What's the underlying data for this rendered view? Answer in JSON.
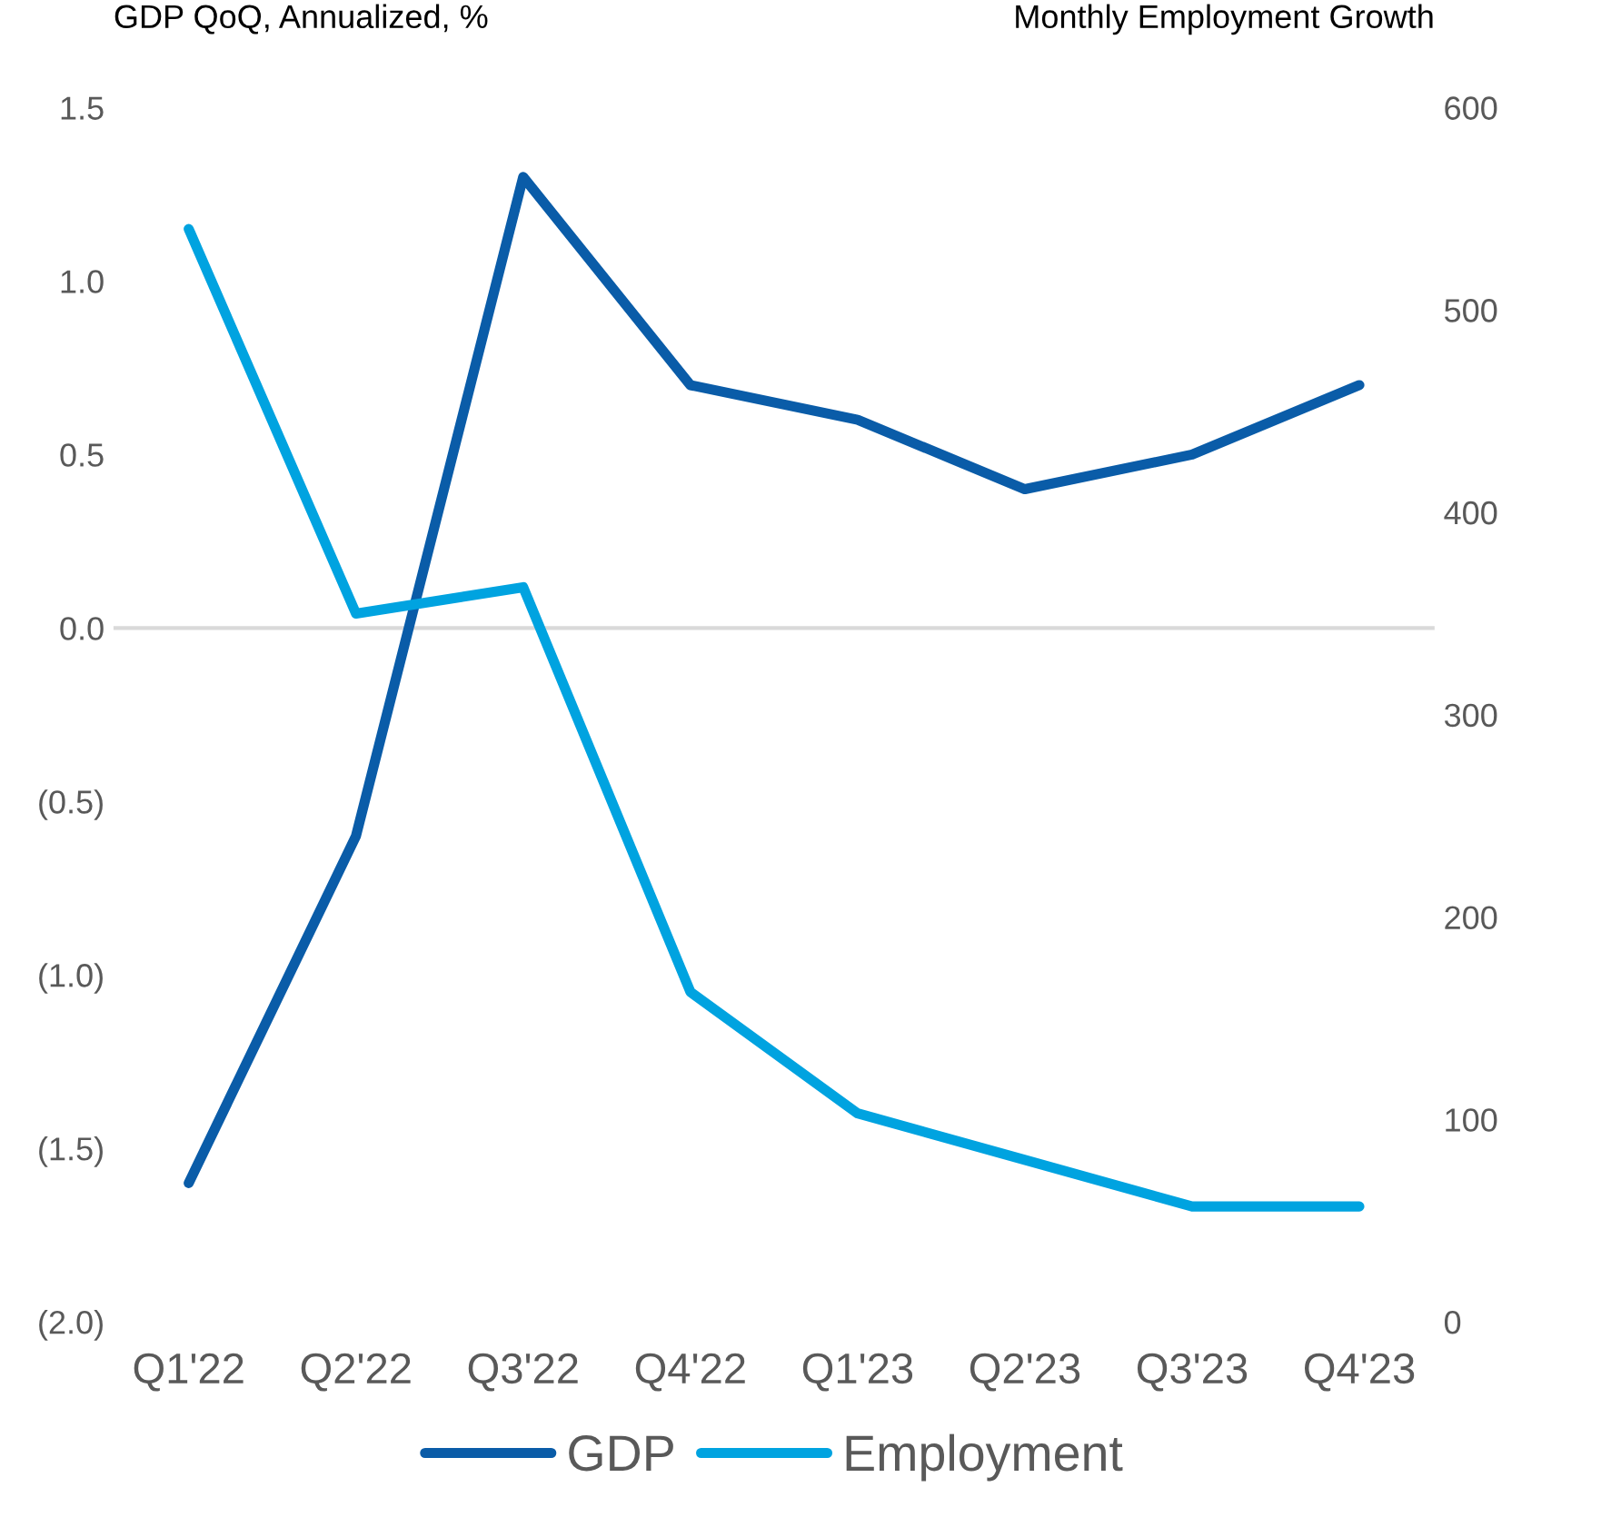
{
  "chart_data": {
    "type": "line",
    "categories": [
      "Q1'22",
      "Q2'22",
      "Q3'22",
      "Q4'22",
      "Q1'23",
      "Q2'23",
      "Q3'23",
      "Q4'23"
    ],
    "ylabel": "GDP QoQ, Annualized, %",
    "y2label": "Monthly Employment Growth",
    "series": [
      {
        "name": "GDP",
        "color": "#0a5ca8",
        "values": [
          -1.6,
          -0.6,
          1.3,
          0.7,
          0.6,
          0.4,
          0.5,
          0.7
        ]
      },
      {
        "name": "Employment",
        "color": "#00a3e0",
        "axis": "y2",
        "values": [
          540,
          350,
          363,
          163,
          103,
          80,
          57,
          57
        ]
      }
    ],
    "ylim": [
      -2.0,
      1.5
    ],
    "yticks": [
      {
        "value": -2.0,
        "label": "(2.0)"
      },
      {
        "value": -1.5,
        "label": "(1.5)"
      },
      {
        "value": -1.0,
        "label": "(1.0)"
      },
      {
        "value": -0.5,
        "label": "(0.5)"
      },
      {
        "value": 0.0,
        "label": "0.0"
      },
      {
        "value": 0.5,
        "label": "0.5"
      },
      {
        "value": 1.0,
        "label": "1.0"
      },
      {
        "value": 1.5,
        "label": "1.5"
      }
    ],
    "y2lim": [
      0,
      600
    ],
    "y2ticks": [
      0,
      100,
      200,
      300,
      400,
      500,
      600
    ],
    "ref_lines": [
      {
        "axis": "y",
        "value": 0,
        "color": "#d9d9d9"
      }
    ],
    "grid": false,
    "legend": "bottom"
  }
}
